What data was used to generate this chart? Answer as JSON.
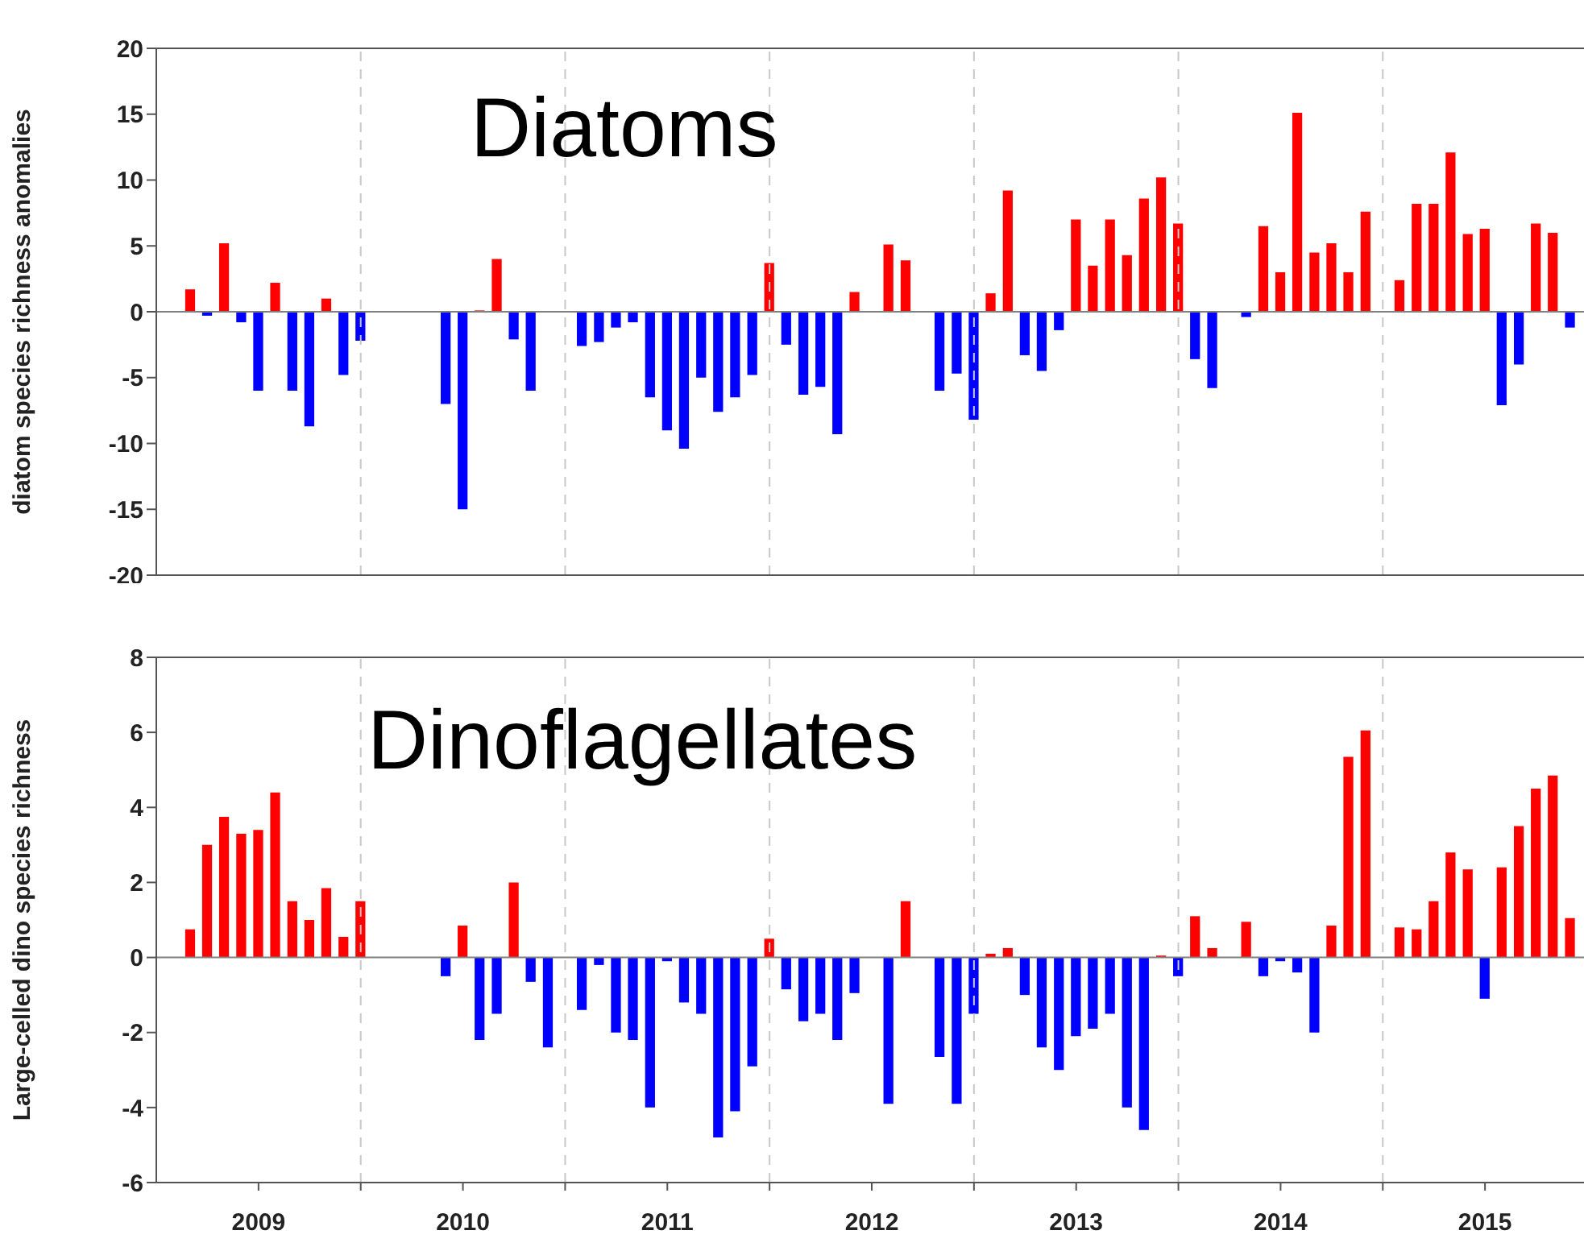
{
  "chart_data": [
    {
      "type": "bar",
      "title": "Diatoms",
      "ylabel": "diatom species richness anomalies",
      "x": [
        2009.167,
        2009.25,
        2009.333,
        2009.417,
        2009.5,
        2009.583,
        2009.667,
        2009.75,
        2009.833,
        2009.917,
        2010.0,
        2010.417,
        2010.5,
        2010.583,
        2010.667,
        2010.75,
        2010.833,
        2011.083,
        2011.167,
        2011.25,
        2011.333,
        2011.417,
        2011.5,
        2011.583,
        2011.667,
        2011.75,
        2011.833,
        2011.917,
        2012.0,
        2012.083,
        2012.167,
        2012.25,
        2012.333,
        2012.417,
        2012.583,
        2012.667,
        2012.833,
        2012.917,
        2013.0,
        2013.083,
        2013.167,
        2013.25,
        2013.333,
        2013.417,
        2013.5,
        2013.583,
        2013.667,
        2013.75,
        2013.833,
        2013.917,
        2014.0,
        2014.083,
        2014.167,
        2014.333,
        2014.417,
        2014.5,
        2014.583,
        2014.667,
        2014.75,
        2014.833,
        2014.917,
        2015.083,
        2015.167,
        2015.25,
        2015.333,
        2015.417,
        2015.5,
        2015.583,
        2015.667,
        2015.75,
        2015.833,
        2015.917
      ],
      "values": [
        1.7,
        -0.3,
        5.2,
        -0.8,
        -6,
        2.2,
        -6,
        -8.7,
        1.0,
        -4.8,
        -2.2,
        -7,
        -15,
        0.1,
        4.0,
        -2.1,
        -6,
        -2.6,
        -2.3,
        -1.2,
        -0.8,
        -6.5,
        -9,
        -10.4,
        -5,
        -7.6,
        -6.5,
        -4.8,
        3.7,
        -2.5,
        -6.3,
        -5.7,
        -9.3,
        1.5,
        5.1,
        3.9,
        -6,
        -4.7,
        -8.2,
        1.4,
        9.2,
        -3.3,
        -4.5,
        -1.4,
        7.0,
        3.5,
        7.0,
        4.3,
        8.6,
        10.2,
        6.7,
        -3.6,
        -5.8,
        -0.4,
        6.5,
        3.0,
        15.1,
        4.5,
        5.2,
        3.0,
        7.6,
        2.4,
        8.2,
        8.2,
        12.1,
        5.9,
        6.3,
        -7.1,
        -4.0,
        6.7,
        6.0,
        -1.2
      ],
      "colors": [
        "#ff0000",
        "#0000ff",
        "#ff0000",
        "#0000ff",
        "#0000ff",
        "#ff0000",
        "#0000ff",
        "#0000ff",
        "#ff0000",
        "#0000ff",
        "#0000ff",
        "#0000ff",
        "#0000ff",
        "#ff0000",
        "#ff0000",
        "#0000ff",
        "#0000ff",
        "#0000ff",
        "#0000ff",
        "#0000ff",
        "#0000ff",
        "#0000ff",
        "#0000ff",
        "#0000ff",
        "#0000ff",
        "#0000ff",
        "#0000ff",
        "#0000ff",
        "#ff0000",
        "#0000ff",
        "#0000ff",
        "#0000ff",
        "#0000ff",
        "#ff0000",
        "#ff0000",
        "#ff0000",
        "#0000ff",
        "#0000ff",
        "#0000ff",
        "#ff0000",
        "#ff0000",
        "#0000ff",
        "#0000ff",
        "#0000ff",
        "#ff0000",
        "#ff0000",
        "#ff0000",
        "#ff0000",
        "#ff0000",
        "#ff0000",
        "#ff0000",
        "#0000ff",
        "#0000ff",
        "#0000ff",
        "#ff0000",
        "#ff0000",
        "#ff0000",
        "#ff0000",
        "#ff0000",
        "#ff0000",
        "#ff0000",
        "#ff0000",
        "#ff0000",
        "#ff0000",
        "#ff0000",
        "#ff0000",
        "#ff0000",
        "#0000ff",
        "#0000ff",
        "#ff0000",
        "#ff0000",
        "#0000ff"
      ],
      "xlim": [
        2009,
        2016
      ],
      "xticks": [
        {
          "value": 2009.5,
          "label": null
        },
        {
          "value": 2010,
          "label": null
        },
        {
          "value": 2010.5,
          "label": null
        },
        {
          "value": 2011,
          "label": null
        },
        {
          "value": 2011.5,
          "label": null
        },
        {
          "value": 2012,
          "label": null
        },
        {
          "value": 2012.5,
          "label": null
        },
        {
          "value": 2013,
          "label": null
        },
        {
          "value": 2013.5,
          "label": null
        },
        {
          "value": 2014,
          "label": null
        },
        {
          "value": 2014.5,
          "label": null
        },
        {
          "value": 2015,
          "label": null
        },
        {
          "value": 2015.5,
          "label": null
        }
      ],
      "ylim": [
        -20,
        20
      ],
      "yticks": [
        -20,
        -15,
        -10,
        -5,
        0,
        5,
        10,
        15,
        20
      ],
      "tick_labels": "y",
      "ref_lines": [
        {
          "axis": "y",
          "value": 0,
          "color": "#808080",
          "line_style": "solid"
        },
        {
          "axis": "x",
          "value": 2010,
          "color": "#c8c8c8",
          "line_style": "dashed"
        },
        {
          "axis": "x",
          "value": 2011,
          "color": "#c8c8c8",
          "line_style": "dashed"
        },
        {
          "axis": "x",
          "value": 2012,
          "color": "#c8c8c8",
          "line_style": "dashed"
        },
        {
          "axis": "x",
          "value": 2013,
          "color": "#c8c8c8",
          "line_style": "dashed"
        },
        {
          "axis": "x",
          "value": 2014,
          "color": "#c8c8c8",
          "line_style": "dashed"
        },
        {
          "axis": "x",
          "value": 2015,
          "color": "#c8c8c8",
          "line_style": "dashed"
        }
      ]
    },
    {
      "type": "bar",
      "title": "Dinoflagellates",
      "ylabel": "Large-celled dino species richness",
      "x": [
        2009.167,
        2009.25,
        2009.333,
        2009.417,
        2009.5,
        2009.583,
        2009.667,
        2009.75,
        2009.833,
        2009.917,
        2010.0,
        2010.417,
        2010.5,
        2010.583,
        2010.667,
        2010.75,
        2010.833,
        2010.917,
        2011.083,
        2011.167,
        2011.25,
        2011.333,
        2011.417,
        2011.5,
        2011.583,
        2011.667,
        2011.75,
        2011.833,
        2011.917,
        2012.0,
        2012.083,
        2012.167,
        2012.25,
        2012.333,
        2012.417,
        2012.583,
        2012.667,
        2012.833,
        2012.917,
        2013.0,
        2013.083,
        2013.167,
        2013.25,
        2013.333,
        2013.417,
        2013.5,
        2013.583,
        2013.667,
        2013.75,
        2013.833,
        2013.917,
        2014.0,
        2014.083,
        2014.167,
        2014.333,
        2014.417,
        2014.5,
        2014.583,
        2014.667,
        2014.75,
        2014.833,
        2014.917,
        2015.083,
        2015.167,
        2015.25,
        2015.333,
        2015.417,
        2015.5,
        2015.583,
        2015.667,
        2015.75,
        2015.833,
        2015.917
      ],
      "values": [
        0.75,
        3.0,
        3.75,
        3.3,
        3.4,
        4.4,
        1.5,
        1.0,
        1.85,
        0.55,
        1.5,
        -0.5,
        0.85,
        -2.2,
        -1.5,
        2.0,
        -0.65,
        -2.4,
        -1.4,
        -0.2,
        -2.0,
        -2.2,
        -4.0,
        -0.1,
        -1.2,
        -1.5,
        -4.8,
        -4.1,
        -2.9,
        0.5,
        -0.85,
        -1.7,
        -1.5,
        -2.2,
        -0.95,
        -3.9,
        1.5,
        -2.65,
        -3.9,
        -1.5,
        0.1,
        0.25,
        -1.0,
        -2.4,
        -3.0,
        -2.1,
        -1.9,
        -1.5,
        -4.0,
        -4.6,
        0.05,
        -0.5,
        1.1,
        0.25,
        0.95,
        -0.5,
        -0.1,
        -0.4,
        -2.0,
        0.85,
        5.35,
        6.05,
        0.8,
        0.75,
        1.5,
        2.8,
        2.35,
        -1.1,
        2.4,
        3.5,
        4.5,
        4.85,
        1.05
      ],
      "colors": [
        "#ff0000",
        "#ff0000",
        "#ff0000",
        "#ff0000",
        "#ff0000",
        "#ff0000",
        "#ff0000",
        "#ff0000",
        "#ff0000",
        "#ff0000",
        "#ff0000",
        "#0000ff",
        "#ff0000",
        "#0000ff",
        "#0000ff",
        "#ff0000",
        "#0000ff",
        "#0000ff",
        "#0000ff",
        "#0000ff",
        "#0000ff",
        "#0000ff",
        "#0000ff",
        "#0000ff",
        "#0000ff",
        "#0000ff",
        "#0000ff",
        "#0000ff",
        "#0000ff",
        "#ff0000",
        "#0000ff",
        "#0000ff",
        "#0000ff",
        "#0000ff",
        "#0000ff",
        "#0000ff",
        "#ff0000",
        "#0000ff",
        "#0000ff",
        "#0000ff",
        "#ff0000",
        "#ff0000",
        "#0000ff",
        "#0000ff",
        "#0000ff",
        "#0000ff",
        "#0000ff",
        "#0000ff",
        "#0000ff",
        "#0000ff",
        "#ff0000",
        "#0000ff",
        "#ff0000",
        "#ff0000",
        "#ff0000",
        "#0000ff",
        "#0000ff",
        "#0000ff",
        "#0000ff",
        "#ff0000",
        "#ff0000",
        "#ff0000",
        "#ff0000",
        "#ff0000",
        "#ff0000",
        "#ff0000",
        "#ff0000",
        "#0000ff",
        "#ff0000",
        "#ff0000",
        "#ff0000",
        "#ff0000",
        "#ff0000"
      ],
      "xlim": [
        2009,
        2016
      ],
      "xticks": [
        {
          "value": 2009.5,
          "label": "2009"
        },
        {
          "value": 2010,
          "label": null
        },
        {
          "value": 2010.5,
          "label": "2010"
        },
        {
          "value": 2011,
          "label": null
        },
        {
          "value": 2011.5,
          "label": "2011"
        },
        {
          "value": 2012,
          "label": null
        },
        {
          "value": 2012.5,
          "label": "2012"
        },
        {
          "value": 2013,
          "label": null
        },
        {
          "value": 2013.5,
          "label": "2013"
        },
        {
          "value": 2014,
          "label": null
        },
        {
          "value": 2014.5,
          "label": "2014"
        },
        {
          "value": 2015,
          "label": null
        },
        {
          "value": 2015.5,
          "label": "2015"
        }
      ],
      "ylim": [
        -6,
        8
      ],
      "yticks": [
        -6,
        -4,
        -2,
        0,
        2,
        4,
        6,
        8
      ],
      "ref_lines": [
        {
          "axis": "y",
          "value": 0,
          "color": "#808080",
          "line_style": "solid"
        },
        {
          "axis": "x",
          "value": 2010,
          "color": "#c8c8c8",
          "line_style": "dashed"
        },
        {
          "axis": "x",
          "value": 2011,
          "color": "#c8c8c8",
          "line_style": "dashed"
        },
        {
          "axis": "x",
          "value": 2012,
          "color": "#c8c8c8",
          "line_style": "dashed"
        },
        {
          "axis": "x",
          "value": 2013,
          "color": "#c8c8c8",
          "line_style": "dashed"
        },
        {
          "axis": "x",
          "value": 2014,
          "color": "#c8c8c8",
          "line_style": "dashed"
        },
        {
          "axis": "x",
          "value": 2015,
          "color": "#c8c8c8",
          "line_style": "dashed"
        }
      ]
    }
  ]
}
